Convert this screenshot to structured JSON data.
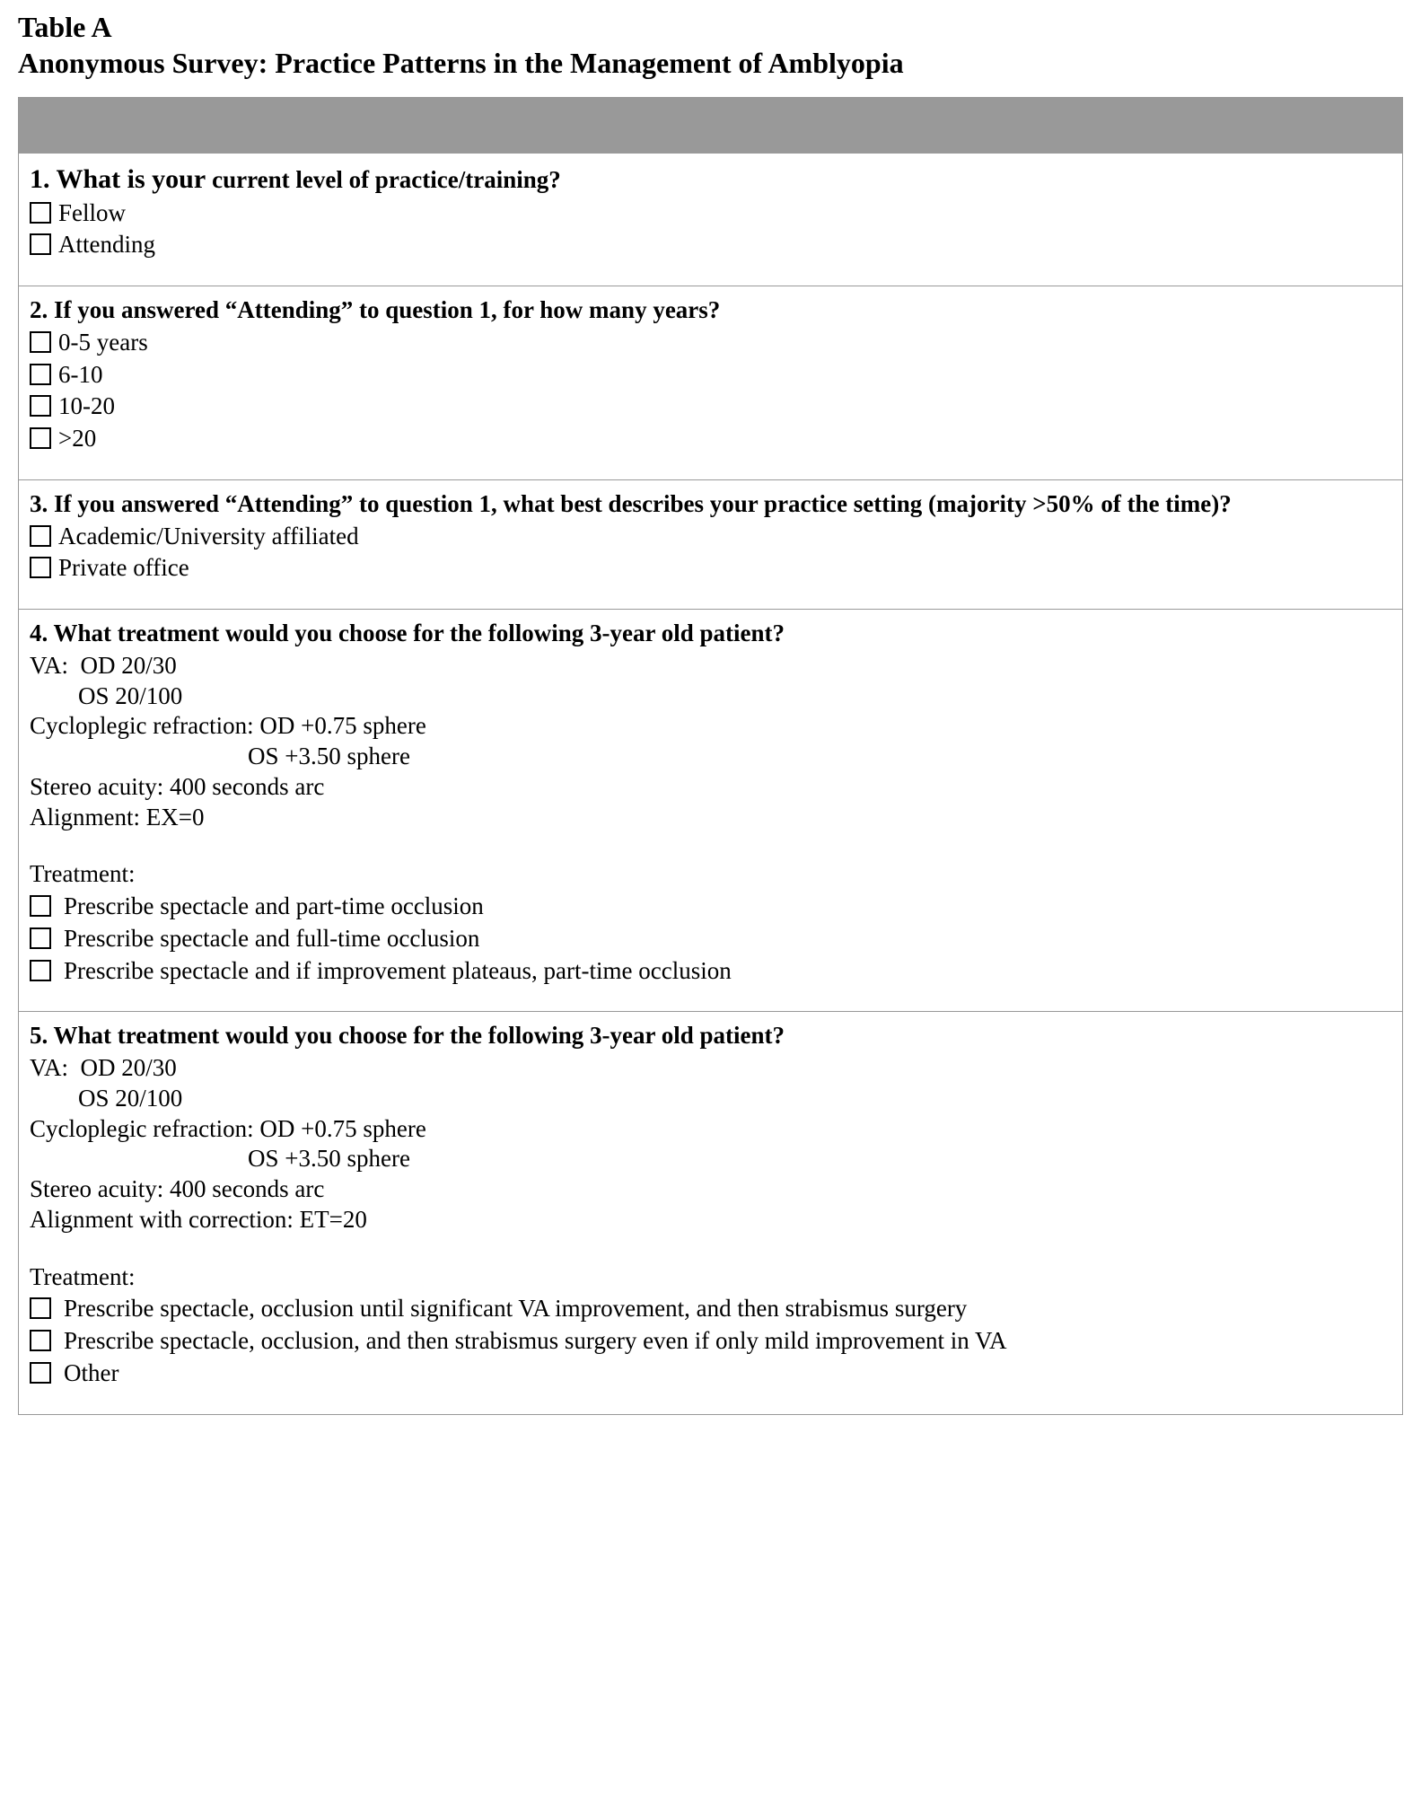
{
  "heading": {
    "line1": "Table A",
    "line2": "Anonymous Survey: Practice Patterns in the Management of Amblyopia"
  },
  "q1": {
    "num": "1",
    "dotspace": ". ",
    "title_big": "What is your ",
    "title_small": "current level of practice/training?",
    "options": [
      "Fellow",
      "Attending"
    ]
  },
  "q2": {
    "title": "2. If you answered “Attending” to question 1, for how many years?",
    "options": [
      "0-5 years",
      "6-10",
      "10-20",
      ">20"
    ]
  },
  "q3": {
    "title": "3. If you answered “Attending” to question 1, what best describes your practice setting (majority >50% of the time)?",
    "options": [
      "Academic/University affiliated",
      "Private office"
    ]
  },
  "q4": {
    "title": "4. What treatment would you choose for the following 3-year old patient?",
    "details": "VA:  OD 20/30\n        OS 20/100\nCycloplegic refraction: OD +0.75 sphere\n                                    OS +3.50 sphere\nStereo acuity: 400 seconds arc\nAlignment: EX=0",
    "treat_label": "Treatment:",
    "options": [
      "Prescribe spectacle and part-time occlusion",
      "Prescribe spectacle and full-time occlusion",
      "Prescribe spectacle and if improvement plateaus, part-time occlusion"
    ]
  },
  "q5": {
    "title": "5. What treatment would you choose for the following 3-year old patient?",
    "details": "VA:  OD 20/30\n        OS 20/100\nCycloplegic refraction: OD +0.75 sphere\n                                    OS +3.50 sphere\nStereo acuity: 400 seconds arc\nAlignment with correction: ET=20",
    "treat_label": "Treatment:",
    "options": [
      "Prescribe spectacle, occlusion until significant VA improvement, and then strabismus surgery",
      "Prescribe spectacle, occlusion, and then strabismus surgery even if only mild improvement in VA",
      "Other"
    ]
  }
}
